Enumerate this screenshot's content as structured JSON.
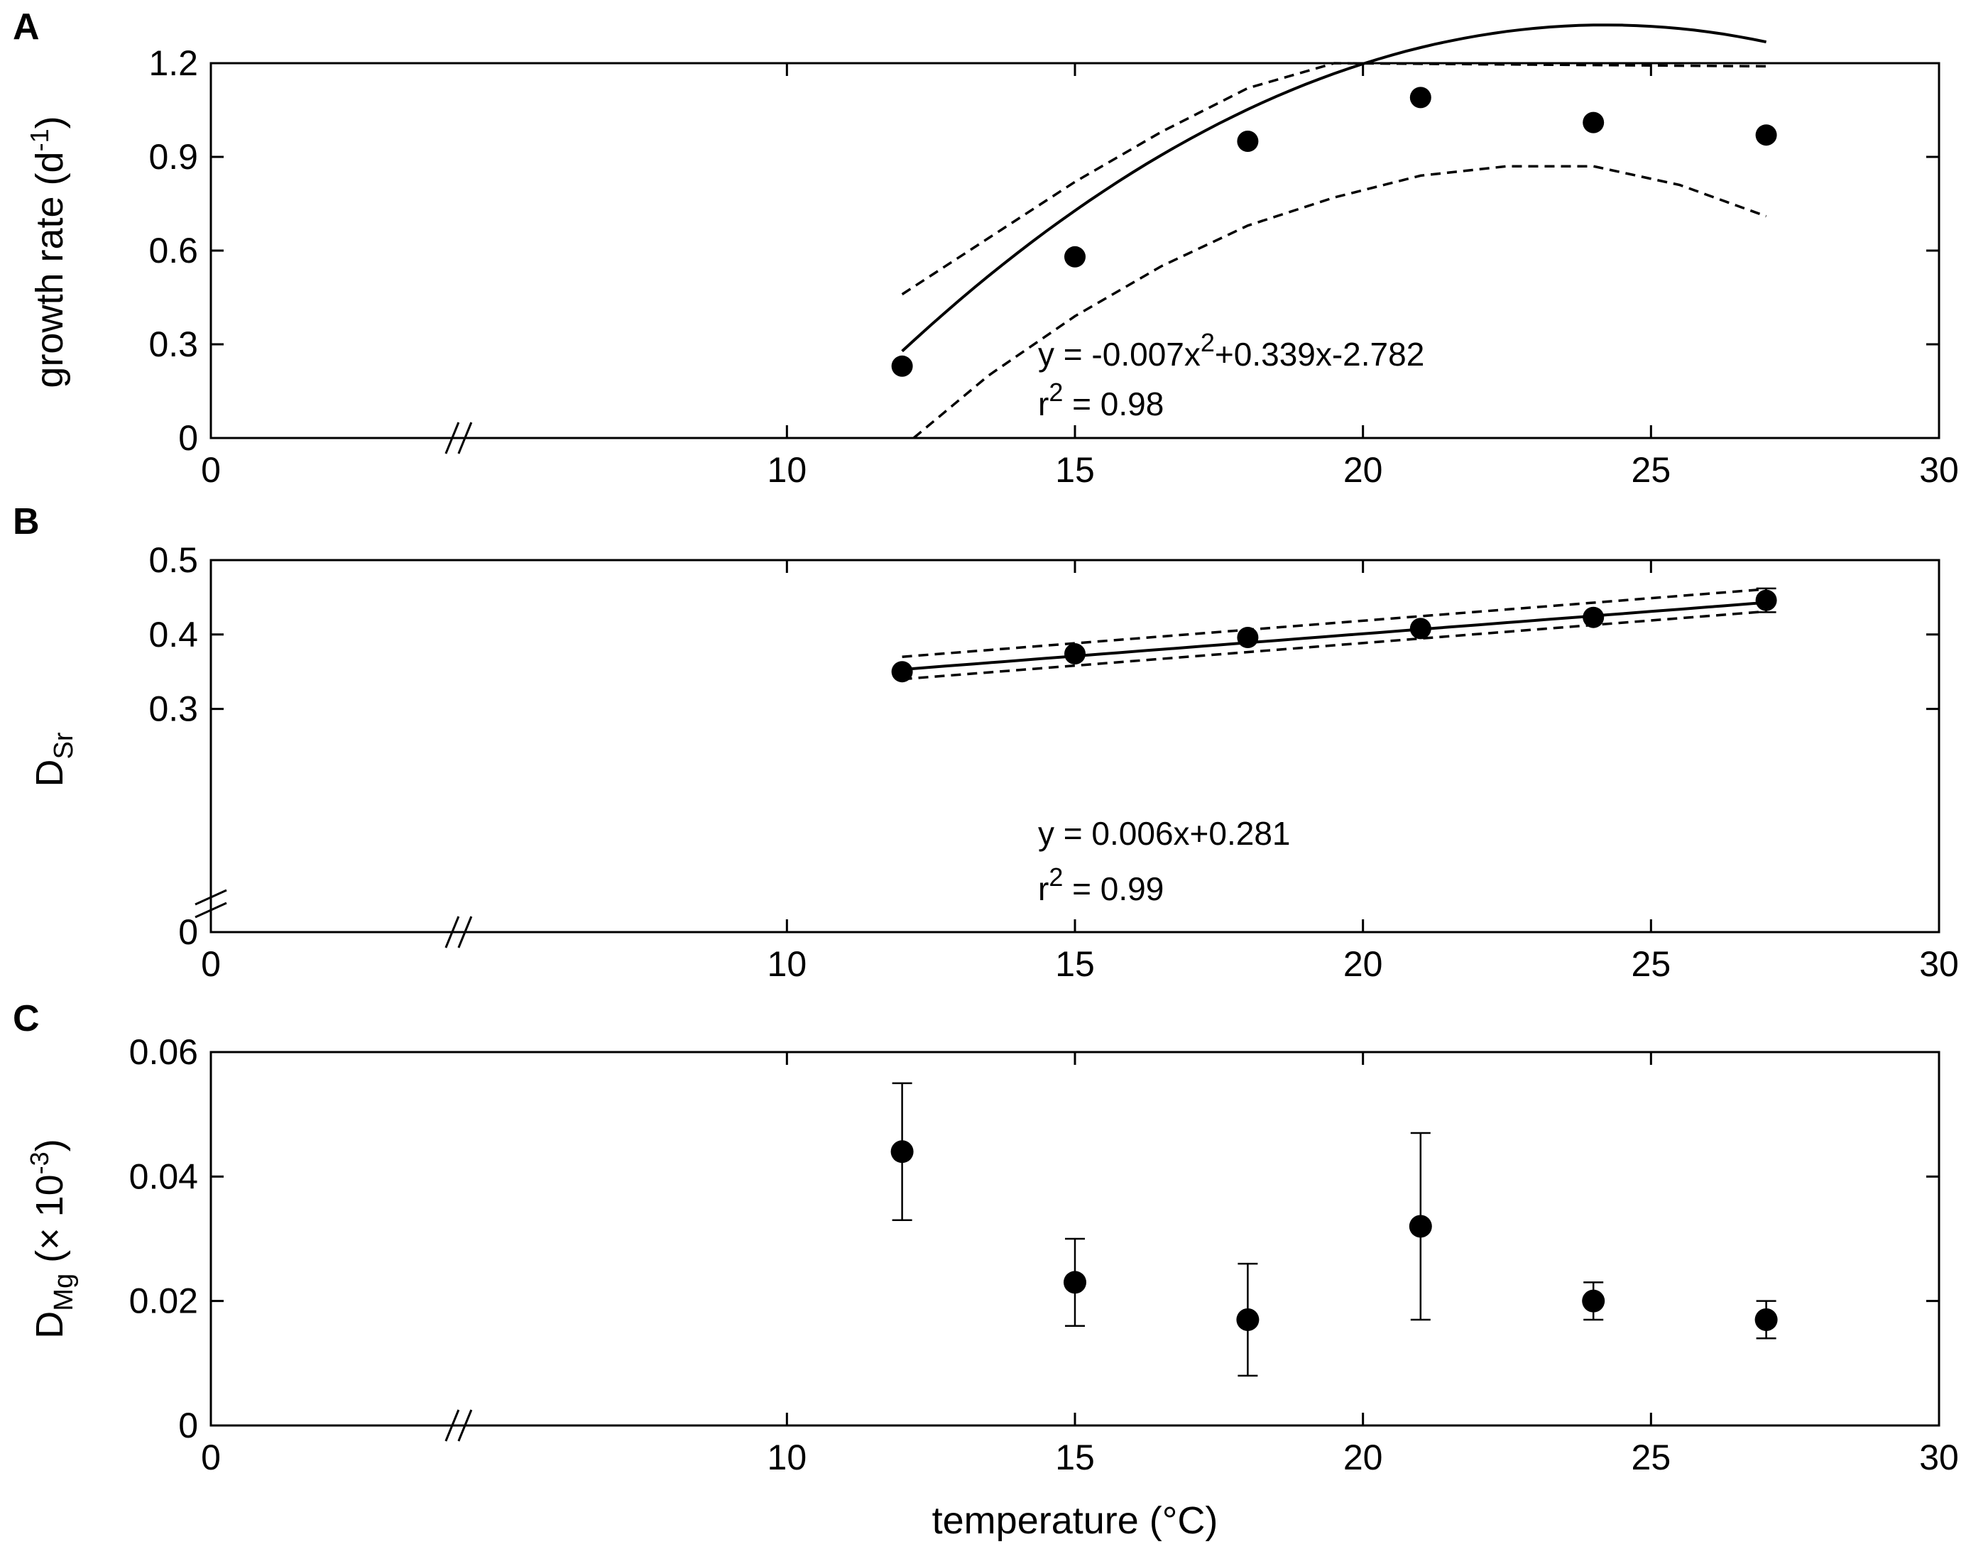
{
  "chart_data": [
    {
      "type": "scatter",
      "panel_label": "A",
      "xlabel": "",
      "ylabel_parts": [
        "growth rate (d",
        "-1",
        ")"
      ],
      "xlim": [
        0,
        30
      ],
      "ylim": [
        0,
        1.2
      ],
      "x_ticks": [
        "0",
        "10",
        "15",
        "20",
        "25",
        "30"
      ],
      "y_ticks": [
        "0",
        "0.3",
        "0.6",
        "0.9",
        "1.2"
      ],
      "x_axis_break": true,
      "y_axis_break": false,
      "grid": false,
      "series": [
        {
          "x": [
            12,
            15,
            18,
            21,
            24,
            27
          ],
          "y": [
            0.23,
            0.58,
            0.95,
            1.09,
            1.01,
            0.97
          ]
        }
      ],
      "fit": {
        "kind": "quadratic",
        "coefficients": [
          -0.007,
          0.339,
          -2.782
        ],
        "equation_parts": [
          "y = -0.007x",
          "2",
          "+0.339x-2.782"
        ],
        "r2_parts": [
          "r",
          "2",
          " = 0.98"
        ],
        "x_range": [
          12,
          27
        ],
        "confidence_upper": {
          "x": [
            12,
            13.5,
            15,
            16.5,
            18,
            19.5,
            27
          ],
          "y": [
            0.46,
            0.64,
            0.82,
            0.98,
            1.12,
            1.23,
            1.19
          ]
        },
        "confidence_lower": {
          "x": [
            12.2,
            13.5,
            15,
            16.5,
            18,
            19.5,
            21,
            22.5,
            24,
            25.5,
            27
          ],
          "y": [
            0.0,
            0.2,
            0.39,
            0.55,
            0.68,
            0.77,
            0.84,
            0.87,
            0.87,
            0.81,
            0.71
          ]
        }
      }
    },
    {
      "type": "scatter",
      "panel_label": "B",
      "xlabel": "",
      "ylabel_parts": [
        "D",
        "Sr"
      ],
      "xlim": [
        0,
        30
      ],
      "ylim": [
        0,
        0.5
      ],
      "y_ticks": [
        "0",
        "0.3",
        "0.4",
        "0.5"
      ],
      "x_ticks": [
        "0",
        "10",
        "15",
        "20",
        "25",
        "30"
      ],
      "x_axis_break": true,
      "y_axis_break": true,
      "grid": false,
      "series": [
        {
          "x": [
            12,
            15,
            18,
            21,
            24,
            27
          ],
          "y": [
            0.35,
            0.374,
            0.396,
            0.408,
            0.423,
            0.446
          ],
          "error": [
            0.0,
            0.0,
            0.0,
            0.0,
            0.0,
            0.016
          ]
        }
      ],
      "fit": {
        "kind": "linear",
        "coefficients": [
          0.006,
          0.281
        ],
        "equation_parts": [
          "y = 0.006x+0.281"
        ],
        "r2_parts": [
          "r",
          "2",
          " = 0.99"
        ],
        "x_range": [
          12,
          27
        ],
        "confidence_upper": {
          "x": [
            12,
            27
          ],
          "y": [
            0.37,
            0.461
          ]
        },
        "confidence_lower": {
          "x": [
            12,
            27
          ],
          "y": [
            0.34,
            0.431
          ]
        }
      }
    },
    {
      "type": "scatter",
      "panel_label": "C",
      "xlabel": "temperature (°C)",
      "ylabel_parts": [
        "D",
        "Mg",
        " (× 10",
        "-3",
        ")"
      ],
      "xlim": [
        0,
        30
      ],
      "ylim": [
        0,
        0.06
      ],
      "y_ticks": [
        "0",
        "0.02",
        "0.04",
        "0.06"
      ],
      "x_ticks": [
        "0",
        "10",
        "15",
        "20",
        "25",
        "30"
      ],
      "x_axis_break": true,
      "y_axis_break": false,
      "grid": false,
      "series": [
        {
          "x": [
            12,
            15,
            18,
            21,
            24,
            27
          ],
          "y": [
            0.044,
            0.023,
            0.017,
            0.032,
            0.02,
            0.017
          ],
          "error_upper": [
            0.055,
            0.03,
            0.026,
            0.047,
            0.023,
            0.02
          ],
          "error_lower": [
            0.033,
            0.016,
            0.008,
            0.017,
            0.017,
            0.014
          ]
        }
      ]
    }
  ]
}
